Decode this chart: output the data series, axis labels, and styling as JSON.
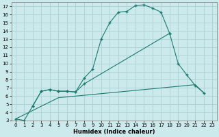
{
  "xlabel": "Humidex (Indice chaleur)",
  "xlim": [
    -0.5,
    23.5
  ],
  "ylim": [
    3,
    17.5
  ],
  "xticks": [
    0,
    1,
    2,
    3,
    4,
    5,
    6,
    7,
    8,
    9,
    10,
    11,
    12,
    13,
    14,
    15,
    16,
    17,
    18,
    19,
    20,
    21,
    22,
    23
  ],
  "yticks": [
    3,
    4,
    5,
    6,
    7,
    8,
    9,
    10,
    11,
    12,
    13,
    14,
    15,
    16,
    17
  ],
  "bg_color": "#cce9eb",
  "grid_color": "#aed4d7",
  "line_color": "#1a7a6e",
  "line1_x": [
    0,
    1,
    2,
    3,
    4,
    5,
    6,
    7,
    8,
    9,
    10,
    11,
    12,
    13,
    14,
    15,
    16,
    17,
    18
  ],
  "line1_y": [
    3.2,
    3.0,
    4.8,
    6.6,
    6.8,
    6.6,
    6.6,
    6.5,
    8.2,
    9.3,
    13.0,
    15.0,
    16.3,
    16.4,
    17.1,
    17.2,
    16.8,
    16.3,
    13.7
  ],
  "line2_x": [
    2,
    3,
    4,
    5,
    6,
    7,
    8,
    18,
    19,
    20,
    21,
    22
  ],
  "line2_y": [
    4.8,
    6.6,
    6.8,
    6.6,
    6.6,
    6.5,
    7.5,
    13.7,
    10.0,
    8.6,
    7.3,
    6.4
  ],
  "line3_x": [
    0,
    5,
    6,
    7,
    8,
    9,
    10,
    11,
    12,
    13,
    14,
    15,
    16,
    17,
    18,
    19,
    20,
    21,
    22
  ],
  "line3_y": [
    3.2,
    5.8,
    5.9,
    6.0,
    6.1,
    6.2,
    6.3,
    6.4,
    6.5,
    6.6,
    6.7,
    6.8,
    6.9,
    7.0,
    7.1,
    7.2,
    7.3,
    7.4,
    6.4
  ]
}
